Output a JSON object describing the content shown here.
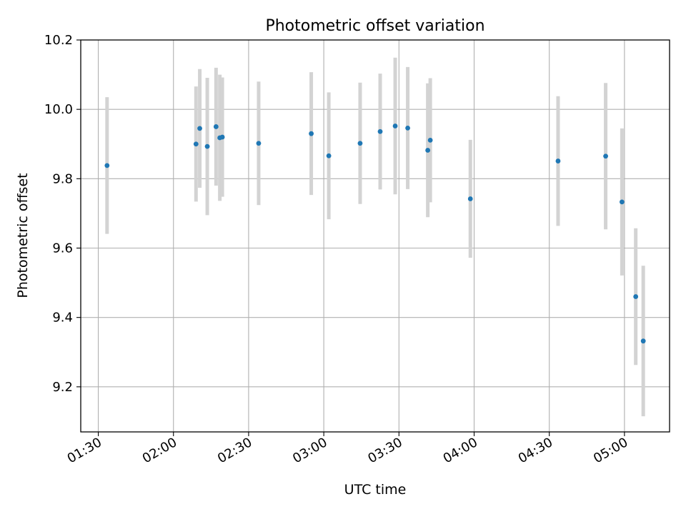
{
  "chart_data": {
    "type": "scatter",
    "title": "Photometric offset variation",
    "xlabel": "UTC time",
    "ylabel": "Photometric offset",
    "xlim": [
      "01:23",
      "05:18"
    ],
    "ylim": [
      9.07,
      10.2
    ],
    "xticks": [
      "01:30",
      "02:00",
      "02:30",
      "03:00",
      "03:30",
      "04:00",
      "04:30",
      "05:00"
    ],
    "yticks": [
      9.2,
      9.4,
      9.6,
      9.8,
      10.0,
      10.2
    ],
    "ytick_labels": [
      "9.2",
      "9.4",
      "9.6",
      "9.8",
      "10.0",
      "10.2"
    ],
    "grid": true,
    "colors": {
      "point": "#1f77b4",
      "errorbar": "#d3d3d3",
      "grid": "#b0b0b0"
    },
    "series": [
      {
        "points": [
          {
            "x": "01:33:30",
            "y": 9.838,
            "yerr": 0.197
          },
          {
            "x": "02:09:00",
            "y": 9.9,
            "yerr": 0.166
          },
          {
            "x": "02:10:30",
            "y": 9.945,
            "yerr": 0.171
          },
          {
            "x": "02:13:30",
            "y": 9.893,
            "yerr": 0.198
          },
          {
            "x": "02:17:00",
            "y": 9.95,
            "yerr": 0.17
          },
          {
            "x": "02:18:30",
            "y": 9.918,
            "yerr": 0.182
          },
          {
            "x": "02:19:30",
            "y": 9.92,
            "yerr": 0.172
          },
          {
            "x": "02:34:00",
            "y": 9.902,
            "yerr": 0.178
          },
          {
            "x": "02:55:00",
            "y": 9.93,
            "yerr": 0.177
          },
          {
            "x": "03:02:00",
            "y": 9.866,
            "yerr": 0.183
          },
          {
            "x": "03:14:30",
            "y": 9.902,
            "yerr": 0.175
          },
          {
            "x": "03:22:30",
            "y": 9.936,
            "yerr": 0.167
          },
          {
            "x": "03:28:30",
            "y": 9.952,
            "yerr": 0.197
          },
          {
            "x": "03:33:30",
            "y": 9.946,
            "yerr": 0.176
          },
          {
            "x": "03:41:30",
            "y": 9.882,
            "yerr": 0.193
          },
          {
            "x": "03:42:30",
            "y": 9.911,
            "yerr": 0.179
          },
          {
            "x": "03:58:30",
            "y": 9.742,
            "yerr": 0.17
          },
          {
            "x": "04:33:30",
            "y": 9.851,
            "yerr": 0.187
          },
          {
            "x": "04:52:30",
            "y": 9.865,
            "yerr": 0.211
          },
          {
            "x": "04:59:00",
            "y": 9.733,
            "yerr": 0.212
          },
          {
            "x": "05:04:30",
            "y": 9.46,
            "yerr": 0.197
          },
          {
            "x": "05:07:30",
            "y": 9.332,
            "yerr": 0.217
          }
        ]
      }
    ]
  }
}
